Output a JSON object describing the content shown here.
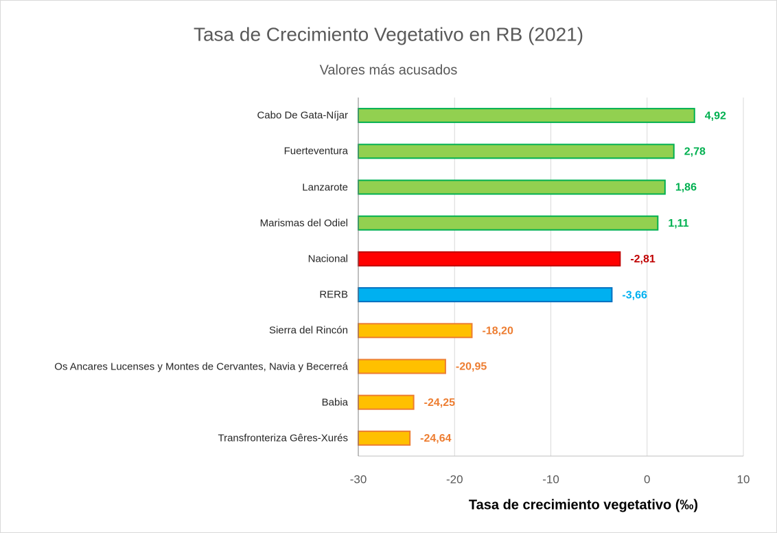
{
  "chart_data": {
    "type": "bar",
    "orientation": "horizontal",
    "title": "Tasa de Crecimiento Vegetativo en RB (2021)",
    "subtitle": "Valores más acusados",
    "x_label": "Tasa de crecimiento vegetativo (‰)",
    "categories": [
      "Cabo De Gata-Níjar",
      "Fuerteventura",
      "Lanzarote",
      "Marismas del Odiel",
      "Nacional",
      "RERB",
      "Sierra del Rincón",
      "Os Ancares Lucenses y Montes de Cervantes, Navia y Becerreá",
      "Babia",
      "Transfronteriza Gêres-Xurés"
    ],
    "values": [
      4.92,
      2.78,
      1.86,
      1.11,
      -2.81,
      -3.66,
      -18.2,
      -20.95,
      -24.25,
      -24.64
    ],
    "value_labels": [
      "4,92",
      "2,78",
      "1,86",
      "1,11",
      "-2,81",
      "-3,66",
      "-18,20",
      "-20,95",
      "-24,25",
      "-24,64"
    ],
    "colors": [
      "#92d050",
      "#92d050",
      "#92d050",
      "#92d050",
      "#ff0000",
      "#00b0f0",
      "#ffc000",
      "#ffc000",
      "#ffc000",
      "#ffc000"
    ],
    "border_colors": [
      "#00b050",
      "#00b050",
      "#00b050",
      "#00b050",
      "#c00000",
      "#0070c0",
      "#ed7d31",
      "#ed7d31",
      "#ed7d31",
      "#ed7d31"
    ],
    "label_colors": [
      "#00b050",
      "#00b050",
      "#00b050",
      "#00b050",
      "#c00000",
      "#00b0f0",
      "#ed7d31",
      "#ed7d31",
      "#ed7d31",
      "#ed7d31"
    ],
    "xlim": [
      -30,
      10
    ],
    "xticks": [
      -30,
      -20,
      -10,
      0,
      10
    ],
    "grid": true
  }
}
